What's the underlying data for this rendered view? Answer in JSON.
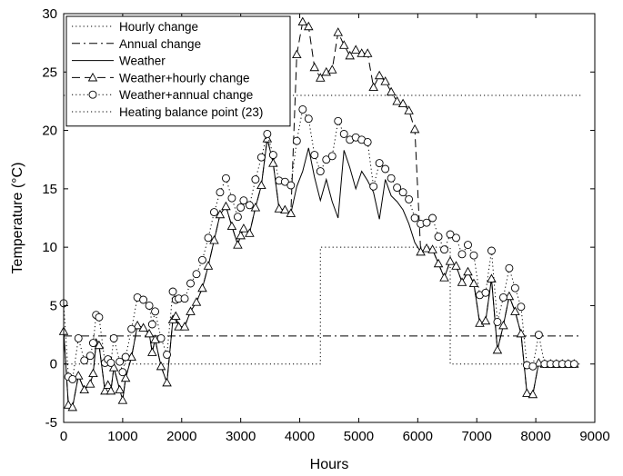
{
  "chart_data": {
    "type": "line",
    "title": "",
    "xlabel": "Hours",
    "ylabel": "Temperature (°C)",
    "xlim": [
      0,
      9000
    ],
    "ylim": [
      -5,
      30
    ],
    "xticks": [
      0,
      1000,
      2000,
      3000,
      4000,
      5000,
      6000,
      7000,
      8000,
      9000
    ],
    "yticks": [
      -5,
      0,
      5,
      10,
      15,
      20,
      25,
      30
    ],
    "grid": false,
    "legend_position": "top-left",
    "series": [
      {
        "name": "Hourly change",
        "style": "dotted",
        "marker": "none",
        "x": [
          0,
          4350,
          4350,
          6550,
          6550,
          8760
        ],
        "y": [
          0,
          0,
          10,
          10,
          0,
          0
        ]
      },
      {
        "name": "Annual change",
        "style": "dashdot",
        "marker": "none",
        "x": [
          0,
          8760
        ],
        "y": [
          2.4,
          2.4
        ]
      },
      {
        "name": "Weather",
        "style": "solid",
        "marker": "none",
        "x": [
          0,
          80,
          150,
          250,
          350,
          450,
          500,
          550,
          600,
          700,
          750,
          800,
          850,
          950,
          1000,
          1050,
          1150,
          1250,
          1350,
          1450,
          1500,
          1550,
          1650,
          1750,
          1850,
          1900,
          1950,
          2050,
          2150,
          2250,
          2350,
          2450,
          2550,
          2650,
          2750,
          2850,
          2950,
          3000,
          3050,
          3150,
          3250,
          3350,
          3450,
          3550,
          3650,
          3750,
          3850,
          3950,
          4050,
          4150,
          4250,
          4350,
          4450,
          4550,
          4650,
          4750,
          4850,
          4950,
          5050,
          5150,
          5250,
          5350,
          5450,
          5550,
          5650,
          5750,
          5850,
          5950,
          6050,
          6150,
          6250,
          6350,
          6450,
          6550,
          6650,
          6750,
          6850,
          6950,
          7050,
          7150,
          7250,
          7350,
          7450,
          7550,
          7650,
          7750,
          7850,
          7950,
          8050,
          8150,
          8250,
          8350,
          8450,
          8550,
          8650
        ],
        "y": [
          2.8,
          -3.5,
          -3.7,
          -1.0,
          -2.2,
          -1.7,
          -0.8,
          1.8,
          1.6,
          -2.3,
          -1.8,
          -2.3,
          -0.3,
          -2.2,
          -3.1,
          -1.2,
          0.6,
          3.3,
          3.1,
          2.6,
          1.0,
          2.1,
          -0.2,
          -1.6,
          3.8,
          4.1,
          3.2,
          3.2,
          4.5,
          5.3,
          6.5,
          8.4,
          10.6,
          12.8,
          13.5,
          11.8,
          10.2,
          11.0,
          11.6,
          11.2,
          13.4,
          15.3,
          19.3,
          17.2,
          13.3,
          13.2,
          12.9,
          15.2,
          16.5,
          18.5,
          16.0,
          14.0,
          15.8,
          13.9,
          12.5,
          18.3,
          16.8,
          15.0,
          16.5,
          15.7,
          14.7,
          12.4,
          15.8,
          14.4,
          13.9,
          13.2,
          12.0,
          10.4,
          9.6,
          9.9,
          9.8,
          8.6,
          7.4,
          8.8,
          8.4,
          7.0,
          7.9,
          6.9,
          3.5,
          3.7,
          7.3,
          1.2,
          3.3,
          5.8,
          4.5,
          2.6,
          -2.5,
          -2.6,
          0.1,
          0.0,
          0.0,
          0.0,
          0.0,
          0.0,
          0.0
        ]
      },
      {
        "name": "Weather+hourly change",
        "style": "dashed",
        "marker": "triangle",
        "x": [
          0,
          80,
          150,
          250,
          350,
          450,
          500,
          550,
          600,
          700,
          750,
          800,
          850,
          950,
          1000,
          1050,
          1150,
          1250,
          1350,
          1450,
          1500,
          1550,
          1650,
          1750,
          1850,
          1900,
          1950,
          2050,
          2150,
          2250,
          2350,
          2450,
          2550,
          2650,
          2750,
          2850,
          2950,
          3000,
          3050,
          3150,
          3250,
          3350,
          3450,
          3550,
          3650,
          3750,
          3850,
          3950,
          4050,
          4150,
          4250,
          4350,
          4450,
          4550,
          4650,
          4750,
          4850,
          4950,
          5050,
          5150,
          5250,
          5350,
          5450,
          5550,
          5650,
          5750,
          5850,
          5950,
          6050,
          6150,
          6250,
          6350,
          6450,
          6550,
          6650,
          6750,
          6850,
          6950,
          7050,
          7150,
          7250,
          7350,
          7450,
          7550,
          7650,
          7750,
          7850,
          7950,
          8050,
          8150,
          8250,
          8350,
          8450,
          8550,
          8650
        ],
        "y": [
          2.8,
          -3.5,
          -3.7,
          -1.0,
          -2.2,
          -1.7,
          -0.8,
          1.8,
          1.6,
          -2.3,
          -1.8,
          -2.3,
          -0.3,
          -2.2,
          -3.1,
          -1.2,
          0.6,
          3.3,
          3.1,
          2.6,
          1.0,
          2.1,
          -0.2,
          -1.6,
          3.8,
          4.1,
          3.2,
          3.2,
          4.5,
          5.3,
          6.5,
          8.4,
          10.6,
          12.8,
          13.5,
          11.8,
          10.2,
          11.0,
          11.6,
          11.2,
          13.4,
          15.3,
          19.3,
          17.2,
          13.3,
          13.2,
          12.9,
          26.5,
          29.3,
          28.9,
          25.4,
          24.5,
          25.0,
          25.2,
          28.4,
          27.3,
          26.4,
          26.9,
          26.6,
          26.6,
          23.7,
          24.7,
          24.2,
          23.3,
          22.5,
          22.3,
          21.7,
          20.1,
          9.6,
          9.9,
          9.8,
          8.6,
          7.4,
          8.8,
          8.4,
          7.0,
          7.9,
          6.9,
          3.5,
          3.7,
          7.3,
          1.2,
          3.3,
          5.8,
          4.5,
          2.6,
          -2.5,
          -2.6,
          0.1,
          0.0,
          0.0,
          0.0,
          0.0,
          0.0,
          0.0
        ]
      },
      {
        "name": "Weather+annual change",
        "style": "dotted",
        "marker": "circle",
        "x": [
          0,
          80,
          150,
          250,
          350,
          450,
          500,
          550,
          600,
          700,
          750,
          800,
          850,
          950,
          1000,
          1050,
          1150,
          1250,
          1350,
          1450,
          1500,
          1550,
          1650,
          1750,
          1850,
          1900,
          1950,
          2050,
          2150,
          2250,
          2350,
          2450,
          2550,
          2650,
          2750,
          2850,
          2950,
          3000,
          3050,
          3150,
          3250,
          3350,
          3450,
          3550,
          3650,
          3750,
          3850,
          3950,
          4050,
          4150,
          4250,
          4350,
          4450,
          4550,
          4650,
          4750,
          4850,
          4950,
          5050,
          5150,
          5250,
          5350,
          5450,
          5550,
          5650,
          5750,
          5850,
          5950,
          6050,
          6150,
          6250,
          6350,
          6450,
          6550,
          6650,
          6750,
          6850,
          6950,
          7050,
          7150,
          7250,
          7350,
          7450,
          7550,
          7650,
          7750,
          7850,
          7950,
          8050,
          8150,
          8250,
          8350,
          8450,
          8550,
          8650
        ],
        "y": [
          5.2,
          -1.1,
          -1.3,
          2.2,
          0.3,
          0.7,
          1.8,
          4.2,
          4.0,
          0.1,
          0.4,
          0.1,
          2.2,
          0.2,
          -0.7,
          0.6,
          3.0,
          5.7,
          5.5,
          5.0,
          3.4,
          4.5,
          2.2,
          0.8,
          6.2,
          5.5,
          5.6,
          5.6,
          6.9,
          7.7,
          8.9,
          10.8,
          13.0,
          14.7,
          15.9,
          14.2,
          12.6,
          13.4,
          14.0,
          13.6,
          15.8,
          17.7,
          19.7,
          17.9,
          15.7,
          15.6,
          15.3,
          19.1,
          21.8,
          21.0,
          17.9,
          16.5,
          17.5,
          17.8,
          20.8,
          19.7,
          19.2,
          19.4,
          19.2,
          19.0,
          15.2,
          17.2,
          16.7,
          15.9,
          15.1,
          14.7,
          14.1,
          12.5,
          12.0,
          12.1,
          12.5,
          10.9,
          9.8,
          11.1,
          10.8,
          9.4,
          10.2,
          9.3,
          5.9,
          6.1,
          9.7,
          3.6,
          5.7,
          8.2,
          6.5,
          4.9,
          -0.1,
          -0.2,
          2.5,
          0.0,
          0.0,
          0.0,
          0.0,
          0.0,
          0.0
        ]
      },
      {
        "name": "Heating balance point (23)",
        "style": "dotted",
        "marker": "none",
        "x": [
          0,
          8760
        ],
        "y": [
          23,
          23
        ]
      }
    ]
  }
}
